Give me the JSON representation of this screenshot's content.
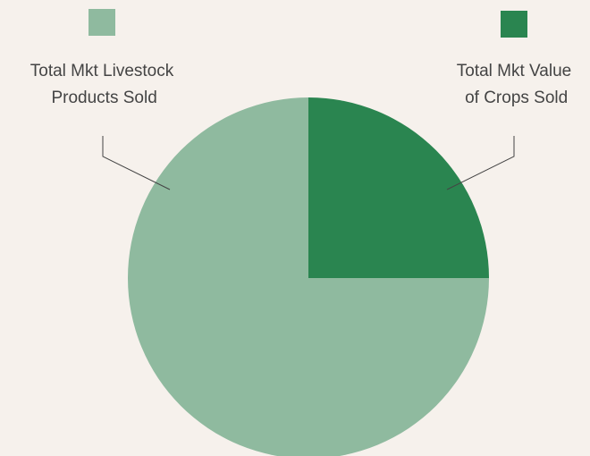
{
  "chart_data": {
    "type": "pie",
    "categories": [
      "Total Mkt Value of Crops Sold",
      "Total Mkt Livestock Products Sold"
    ],
    "values": [
      25,
      75
    ],
    "colors": [
      "#2a8550",
      "#8fba9f"
    ]
  }
}
